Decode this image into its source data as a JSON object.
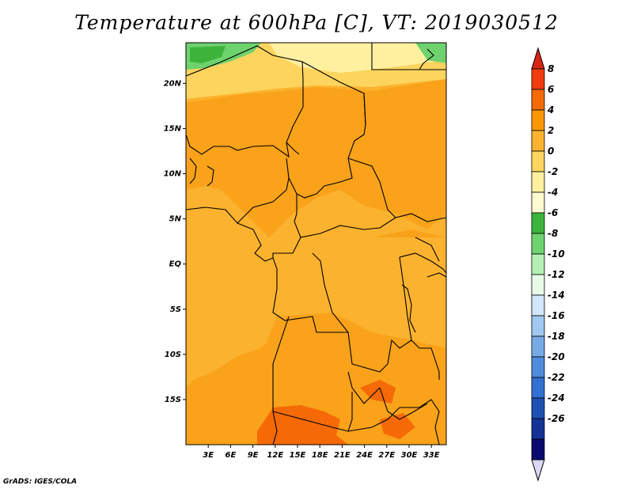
{
  "title": "Temperature at 600hPa [C], VT: 2019030512",
  "credit": "GrADS: IGES/COLA",
  "map": {
    "lon_range": [
      0,
      35
    ],
    "lat_range": [
      -20,
      24.5
    ],
    "lat_ticks": [
      {
        "value": 20,
        "label": "20N"
      },
      {
        "value": 15,
        "label": "15N"
      },
      {
        "value": 10,
        "label": "10N"
      },
      {
        "value": 5,
        "label": "5N"
      },
      {
        "value": 0,
        "label": "EQ"
      },
      {
        "value": -5,
        "label": "5S"
      },
      {
        "value": -10,
        "label": "10S"
      },
      {
        "value": -15,
        "label": "15S"
      }
    ],
    "lon_ticks": [
      {
        "value": 3,
        "label": "3E"
      },
      {
        "value": 6,
        "label": "6E"
      },
      {
        "value": 9,
        "label": "9E"
      },
      {
        "value": 12,
        "label": "12E"
      },
      {
        "value": 15,
        "label": "15E"
      },
      {
        "value": 18,
        "label": "18E"
      },
      {
        "value": 21,
        "label": "21E"
      },
      {
        "value": 24,
        "label": "24E"
      },
      {
        "value": 27,
        "label": "27E"
      },
      {
        "value": 30,
        "label": "30E"
      },
      {
        "value": 33,
        "label": "33E"
      }
    ]
  },
  "colorbar": {
    "labels": [
      "8",
      "6",
      "4",
      "2",
      "0",
      "-2",
      "-4",
      "-6",
      "-8",
      "-10",
      "-12",
      "-14",
      "-16",
      "-18",
      "-20",
      "-22",
      "-24",
      "-26"
    ],
    "top_color": "#d92614",
    "bottom_color": "#d9d9f5",
    "colors": [
      "#f03c0a",
      "#f56a06",
      "#fa9600",
      "#fbb22e",
      "#fcd45e",
      "#fff0a0",
      "#fffad0",
      "#3cb43c",
      "#6ed26e",
      "#b4f0b4",
      "#e8fae8",
      "#d2e6fa",
      "#a0c8f0",
      "#78aae6",
      "#508cdc",
      "#3270d2",
      "#1e50b4",
      "#143296",
      "#0a0a6e"
    ]
  }
}
